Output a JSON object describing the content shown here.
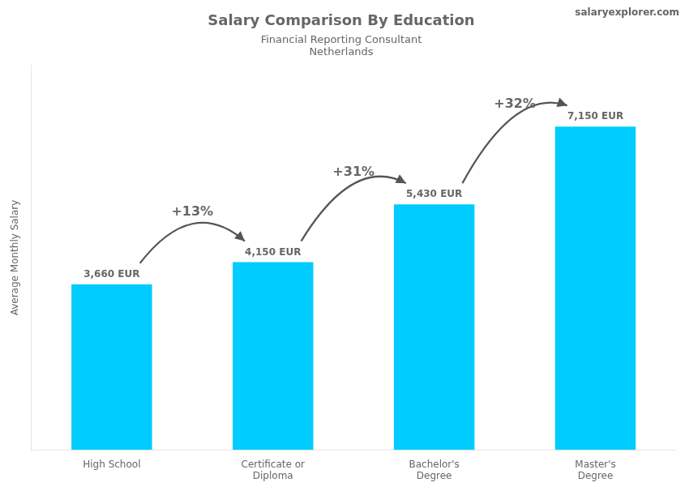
{
  "chart_data": {
    "type": "bar",
    "title": "Salary Comparison By Education",
    "subtitle": [
      "Financial Reporting Consultant",
      "Netherlands"
    ],
    "ylabel": "Average Monthly Salary",
    "categories": [
      "High School",
      "Certificate or\nDiploma",
      "Bachelor's\nDegree",
      "Master's\nDegree"
    ],
    "values": [
      3660,
      4150,
      5430,
      7150
    ],
    "value_labels": [
      "3,660 EUR",
      "4,150 EUR",
      "5,430 EUR",
      "7,150 EUR"
    ],
    "data_labels": true,
    "color": "#00ccff",
    "ylim": [
      0,
      8500
    ],
    "grid": false,
    "tick_labels": "x",
    "annotations": [
      {
        "text": "+13%",
        "from": "High School",
        "to": "Certificate or\nDiploma"
      },
      {
        "text": "+31%",
        "from": "Certificate or\nDiploma",
        "to": "Bachelor's\nDegree"
      },
      {
        "text": "+32%",
        "from": "Bachelor's\nDegree",
        "to": "Master's\nDegree"
      },
      {
        "text": "salaryexplorer.com"
      }
    ]
  }
}
